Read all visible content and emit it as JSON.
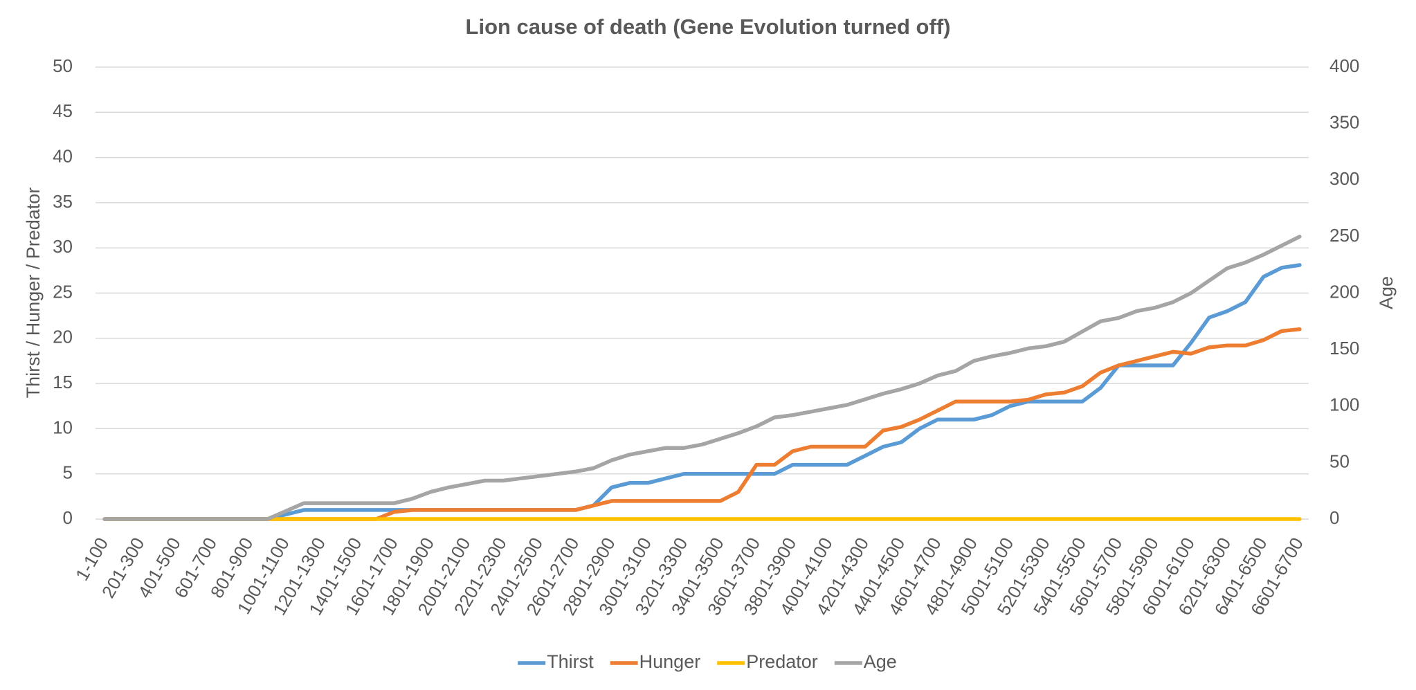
{
  "chart_data": {
    "type": "line",
    "title": "Lion cause of death (Gene Evolution turned off)",
    "y_label": "Thirst / Hunger / Predator",
    "y2_label": "Age",
    "categories": [
      "1-100",
      null,
      "201-300",
      null,
      "401-500",
      null,
      "601-700",
      null,
      "801-900",
      null,
      "1001-1100",
      null,
      "1201-1300",
      null,
      "1401-1500",
      null,
      "1601-1700",
      null,
      "1801-1900",
      null,
      "2001-2100",
      null,
      "2201-2300",
      null,
      "2401-2500",
      null,
      "2601-2700",
      null,
      "2801-2900",
      null,
      "3001-3100",
      null,
      "3201-3300",
      null,
      "3401-3500",
      null,
      "3601-3700",
      null,
      "3801-3900",
      null,
      "4001-4100",
      null,
      "4201-4300",
      null,
      "4401-4500",
      null,
      "4601-4700",
      null,
      "4801-4900",
      null,
      "5001-5100",
      null,
      "5201-5300",
      null,
      "5401-5500",
      null,
      "5601-5700",
      null,
      "5801-5900",
      null,
      "6001-6100",
      null,
      "6201-6300",
      null,
      "6401-6500",
      null,
      "6601-6700"
    ],
    "series": [
      {
        "name": "Thirst",
        "color": "#5b9bd5",
        "values": [
          0,
          0,
          0,
          0,
          0,
          0,
          0,
          0,
          0,
          0,
          0.5,
          1,
          1,
          1,
          1,
          1,
          1,
          1,
          1,
          1,
          1,
          1,
          1,
          1,
          1,
          1,
          1,
          1.5,
          3.5,
          4,
          4,
          4.5,
          5,
          5,
          5,
          5,
          5,
          5,
          6,
          6,
          6,
          6,
          7,
          8,
          8.5,
          10,
          11,
          11,
          11,
          11.5,
          12.5,
          13,
          13,
          13,
          13,
          14.5,
          17,
          17,
          17,
          17,
          19.5,
          22.3,
          23,
          24,
          26.8,
          27.8,
          28.1
        ]
      },
      {
        "name": "Hunger",
        "color": "#ed7d31",
        "values": [
          0,
          0,
          0,
          0,
          0,
          0,
          0,
          0,
          0,
          0,
          0,
          0,
          0,
          0,
          0,
          0,
          0.8,
          1,
          1,
          1,
          1,
          1,
          1,
          1,
          1,
          1,
          1,
          1.5,
          2,
          2,
          2,
          2,
          2,
          2,
          2,
          3,
          6,
          6,
          7.5,
          8,
          8,
          8,
          8,
          9.8,
          10.2,
          11,
          12,
          13,
          13,
          13,
          13,
          13.2,
          13.8,
          14,
          14.7,
          16.2,
          17,
          17.5,
          18,
          18.5,
          18.3,
          19,
          19.2,
          19.2,
          19.8,
          20.8,
          21
        ]
      },
      {
        "name": "Predator",
        "color": "#ffc000",
        "values": [
          0,
          0,
          0,
          0,
          0,
          0,
          0,
          0,
          0,
          0,
          0,
          0,
          0,
          0,
          0,
          0,
          0,
          0,
          0,
          0,
          0,
          0,
          0,
          0,
          0,
          0,
          0,
          0,
          0,
          0,
          0,
          0,
          0,
          0,
          0,
          0,
          0,
          0,
          0,
          0,
          0,
          0,
          0,
          0,
          0,
          0,
          0,
          0,
          0,
          0,
          0,
          0,
          0,
          0,
          0,
          0,
          0,
          0,
          0,
          0,
          0,
          0,
          0,
          0,
          0,
          0,
          0
        ]
      },
      {
        "name": "Age",
        "color": "#a5a5a5",
        "axis": "y2",
        "values": [
          0,
          0,
          0,
          0,
          0,
          0,
          0,
          0,
          0,
          0,
          7,
          14,
          14,
          14,
          14,
          14,
          14,
          18,
          24,
          28,
          31,
          34,
          34,
          36,
          38,
          40,
          42,
          45,
          52,
          57,
          60,
          63,
          63,
          66,
          71,
          76,
          82,
          90,
          92,
          95,
          98,
          101,
          106,
          111,
          115,
          120,
          127,
          131,
          140,
          144,
          147,
          151,
          153,
          157,
          166,
          175,
          178,
          184,
          187,
          192,
          200,
          211,
          222,
          227,
          234,
          242,
          250
        ]
      }
    ],
    "ylim": [
      0,
      50
    ],
    "yticks": [
      0,
      5,
      10,
      15,
      20,
      25,
      30,
      35,
      40,
      45,
      50
    ],
    "y2lim": [
      0,
      400
    ],
    "y2ticks": [
      0,
      50,
      100,
      150,
      200,
      250,
      300,
      350,
      400
    ],
    "grid": true,
    "legend": "bottom"
  }
}
